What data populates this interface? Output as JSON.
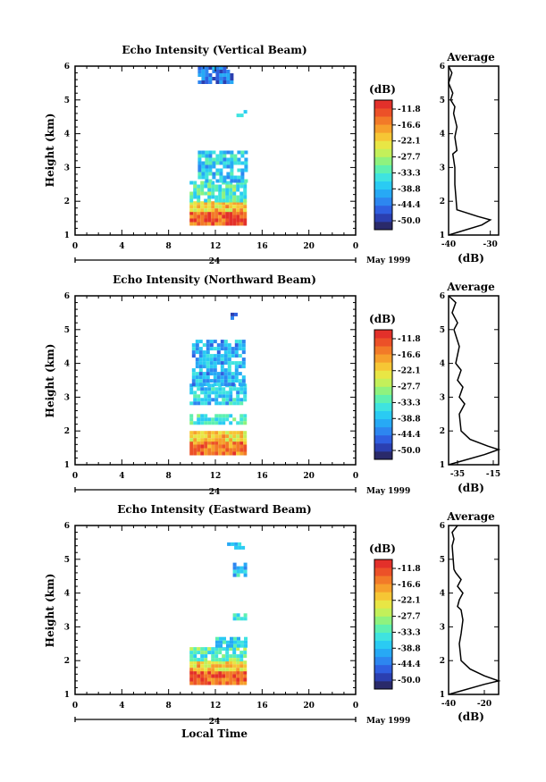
{
  "colorbar": {
    "unit": "(dB)",
    "levels": [
      "-11.8",
      "-16.6",
      "-22.1",
      "-27.7",
      "-33.3",
      "-38.8",
      "-44.4",
      "-50.0"
    ],
    "colors": [
      "#2a2a6a",
      "#2b3fb0",
      "#2f5fe0",
      "#2d86f0",
      "#27a9f5",
      "#2acbf3",
      "#3fe3e0",
      "#5ef0b0",
      "#8ff27e",
      "#c3f05a",
      "#e8e645",
      "#f6c635",
      "#f6a02c",
      "#f27a28",
      "#ec5128",
      "#e3302a"
    ]
  },
  "charts": [
    {
      "title": "Echo Intensity (Vertical Beam)",
      "ylabel": "Height (km)",
      "date_label": "May 1999",
      "day_label": "24",
      "x_ticks": [
        "0",
        "4",
        "8",
        "12",
        "16",
        "20",
        "0"
      ],
      "y_ticks": [
        "1",
        "2",
        "3",
        "4",
        "5",
        "6"
      ],
      "avg_title": "Average",
      "avg_xlabel": "(dB)",
      "avg_xticks": [
        "-40",
        "-30"
      ]
    },
    {
      "title": "Echo Intensity (Northward Beam)",
      "ylabel": "Height (km)",
      "date_label": "May 1999",
      "day_label": "24",
      "x_ticks": [
        "0",
        "4",
        "8",
        "12",
        "16",
        "20",
        "0"
      ],
      "y_ticks": [
        "1",
        "2",
        "3",
        "4",
        "5",
        "6"
      ],
      "avg_title": "Average",
      "avg_xlabel": "(dB)",
      "avg_xticks": [
        "-35",
        "-15"
      ]
    },
    {
      "title": "Echo Intensity (Eastward Beam)",
      "ylabel": "Height (km)",
      "date_label": "May 1999",
      "day_label": "24",
      "x_ticks": [
        "0",
        "4",
        "8",
        "12",
        "16",
        "20",
        "0"
      ],
      "y_ticks": [
        "1",
        "2",
        "3",
        "4",
        "5",
        "6"
      ],
      "avg_title": "Average",
      "avg_xlabel": "(dB)",
      "avg_xticks": [
        "-40",
        "-20"
      ]
    }
  ],
  "xlabel": "Local Time",
  "chart_data": [
    {
      "type": "heatmap",
      "title": "Echo Intensity (Vertical Beam)",
      "x_unit": "hour",
      "y_unit": "km",
      "xlim": [
        0,
        24
      ],
      "ylim": [
        1,
        6
      ],
      "value_unit": "dB",
      "echo_regions": [
        {
          "x": [
            9.8,
            14.5
          ],
          "y": [
            1.35,
            1.7
          ],
          "dB": -14
        },
        {
          "x": [
            9.8,
            14.5
          ],
          "y": [
            1.7,
            2.0
          ],
          "dB": -22
        },
        {
          "x": [
            9.8,
            14.5
          ],
          "y": [
            2.0,
            2.6
          ],
          "dB": -32
        },
        {
          "x": [
            10.5,
            14.5
          ],
          "y": [
            2.6,
            3.5
          ],
          "dB": -36
        },
        {
          "x": [
            13.8,
            14.5
          ],
          "y": [
            4.55,
            4.7
          ],
          "dB": -36
        },
        {
          "x": [
            10.5,
            13.5
          ],
          "y": [
            5.5,
            6.0
          ],
          "dB": -42
        }
      ],
      "average_profile": {
        "xlim": [
          -40,
          -28
        ],
        "points": [
          [
            -40,
            1.0
          ],
          [
            -32,
            1.3
          ],
          [
            -30,
            1.45
          ],
          [
            -33,
            1.55
          ],
          [
            -38,
            1.75
          ],
          [
            -38.5,
            2.5
          ],
          [
            -38.5,
            3.0
          ],
          [
            -39,
            3.4
          ],
          [
            -38,
            3.5
          ],
          [
            -38.5,
            3.9
          ],
          [
            -38,
            4.2
          ],
          [
            -38.8,
            4.6
          ],
          [
            -38.5,
            4.8
          ],
          [
            -39.5,
            5.0
          ],
          [
            -39,
            5.2
          ],
          [
            -40,
            5.5
          ],
          [
            -39.2,
            5.8
          ],
          [
            -40,
            6.0
          ]
        ]
      }
    },
    {
      "type": "heatmap",
      "title": "Echo Intensity (Northward Beam)",
      "x_unit": "hour",
      "y_unit": "km",
      "xlim": [
        0,
        24
      ],
      "ylim": [
        1,
        6
      ],
      "value_unit": "dB",
      "echo_regions": [
        {
          "x": [
            9.8,
            14.5
          ],
          "y": [
            1.3,
            1.7
          ],
          "dB": -16
        },
        {
          "x": [
            9.8,
            14.5
          ],
          "y": [
            1.7,
            2.0
          ],
          "dB": -22
        },
        {
          "x": [
            9.8,
            14.5
          ],
          "y": [
            2.2,
            2.5
          ],
          "dB": -33
        },
        {
          "x": [
            9.8,
            14.5
          ],
          "y": [
            2.8,
            3.4
          ],
          "dB": -36
        },
        {
          "x": [
            10.0,
            14.5
          ],
          "y": [
            3.4,
            4.7
          ],
          "dB": -38
        },
        {
          "x": [
            13.3,
            13.8
          ],
          "y": [
            5.35,
            5.5
          ],
          "dB": -44
        }
      ],
      "average_profile": {
        "xlim": [
          -40,
          -12
        ],
        "points": [
          [
            -40,
            1.0
          ],
          [
            -20,
            1.3
          ],
          [
            -12,
            1.45
          ],
          [
            -18,
            1.55
          ],
          [
            -28,
            1.75
          ],
          [
            -33,
            2.0
          ],
          [
            -34,
            2.5
          ],
          [
            -31,
            2.8
          ],
          [
            -34,
            3.0
          ],
          [
            -32,
            3.3
          ],
          [
            -35,
            3.5
          ],
          [
            -33,
            3.8
          ],
          [
            -36,
            4.0
          ],
          [
            -34,
            4.5
          ],
          [
            -37,
            5.0
          ],
          [
            -35,
            5.2
          ],
          [
            -38,
            5.5
          ],
          [
            -36,
            5.8
          ],
          [
            -40,
            6.0
          ]
        ]
      }
    },
    {
      "type": "heatmap",
      "title": "Echo Intensity (Eastward Beam)",
      "x_unit": "hour",
      "y_unit": "km",
      "xlim": [
        0,
        24
      ],
      "ylim": [
        1,
        6
      ],
      "value_unit": "dB",
      "echo_regions": [
        {
          "x": [
            9.8,
            14.5
          ],
          "y": [
            1.3,
            1.7
          ],
          "dB": -14
        },
        {
          "x": [
            9.8,
            14.5
          ],
          "y": [
            1.7,
            2.0
          ],
          "dB": -22
        },
        {
          "x": [
            9.8,
            14.5
          ],
          "y": [
            2.0,
            2.4
          ],
          "dB": -32
        },
        {
          "x": [
            12.0,
            14.5
          ],
          "y": [
            2.4,
            2.7
          ],
          "dB": -36
        },
        {
          "x": [
            13.5,
            14.5
          ],
          "y": [
            3.2,
            3.4
          ],
          "dB": -36
        },
        {
          "x": [
            13.5,
            14.5
          ],
          "y": [
            4.5,
            4.9
          ],
          "dB": -36
        },
        {
          "x": [
            13.0,
            14.5
          ],
          "y": [
            5.3,
            5.5
          ],
          "dB": -38
        }
      ],
      "average_profile": {
        "xlim": [
          -40,
          -12
        ],
        "points": [
          [
            -40,
            1.0
          ],
          [
            -20,
            1.3
          ],
          [
            -12,
            1.4
          ],
          [
            -20,
            1.55
          ],
          [
            -28,
            1.75
          ],
          [
            -33,
            2.0
          ],
          [
            -34,
            2.5
          ],
          [
            -33,
            2.8
          ],
          [
            -32,
            3.2
          ],
          [
            -33,
            3.5
          ],
          [
            -35,
            3.6
          ],
          [
            -34,
            3.8
          ],
          [
            -32,
            4.0
          ],
          [
            -35,
            4.2
          ],
          [
            -33,
            4.4
          ],
          [
            -36,
            4.6
          ],
          [
            -37,
            4.7
          ],
          [
            -38,
            5.4
          ],
          [
            -37,
            5.6
          ],
          [
            -38,
            5.8
          ],
          [
            -35,
            6.0
          ]
        ]
      }
    }
  ]
}
